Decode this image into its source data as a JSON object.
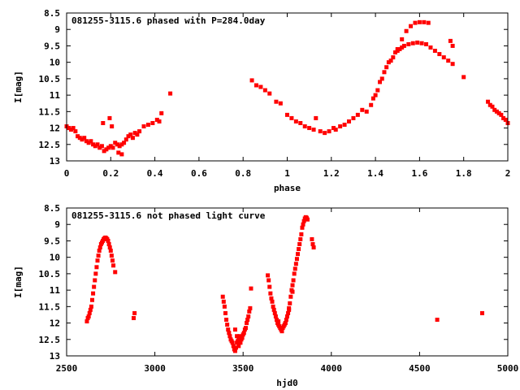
{
  "chart_data": [
    {
      "type": "scatter",
      "title": "081255-3115.6 phased with P=284.0day",
      "xlabel": "phase",
      "ylabel": "I[mag]",
      "xlim": [
        0,
        2
      ],
      "ylim": [
        13,
        8.5
      ],
      "y_inverted": true,
      "grid": false,
      "color": "#ff0000",
      "xticks": [
        "0",
        "0.2",
        "0.4",
        "0.6",
        "0.8",
        "1",
        "1.2",
        "1.4",
        "1.6",
        "1.8",
        "2"
      ],
      "yticks": [
        "8.5",
        "9",
        "9.5",
        "10",
        "10.5",
        "11",
        "11.5",
        "12",
        "12.5",
        "13"
      ],
      "series": [
        {
          "points": [
            [
              0.0,
              11.95
            ],
            [
              0.01,
              12.0
            ],
            [
              0.02,
              12.05
            ],
            [
              0.03,
              12.0
            ],
            [
              0.04,
              12.1
            ],
            [
              0.05,
              12.25
            ],
            [
              0.06,
              12.3
            ],
            [
              0.07,
              12.35
            ],
            [
              0.08,
              12.3
            ],
            [
              0.09,
              12.4
            ],
            [
              0.1,
              12.45
            ],
            [
              0.11,
              12.4
            ],
            [
              0.12,
              12.5
            ],
            [
              0.13,
              12.55
            ],
            [
              0.14,
              12.5
            ],
            [
              0.15,
              12.6
            ],
            [
              0.16,
              12.55
            ],
            [
              0.17,
              12.7
            ],
            [
              0.18,
              12.65
            ],
            [
              0.19,
              12.6
            ],
            [
              0.2,
              12.55
            ],
            [
              0.21,
              12.6
            ],
            [
              0.22,
              12.45
            ],
            [
              0.23,
              12.5
            ],
            [
              0.24,
              12.55
            ],
            [
              0.25,
              12.5
            ],
            [
              0.26,
              12.45
            ],
            [
              0.165,
              11.85
            ],
            [
              0.195,
              11.7
            ],
            [
              0.205,
              11.95
            ],
            [
              0.235,
              12.75
            ],
            [
              0.25,
              12.8
            ],
            [
              0.27,
              12.35
            ],
            [
              0.28,
              12.25
            ],
            [
              0.29,
              12.2
            ],
            [
              0.3,
              12.3
            ],
            [
              0.31,
              12.15
            ],
            [
              0.32,
              12.2
            ],
            [
              0.33,
              12.1
            ],
            [
              0.35,
              11.95
            ],
            [
              0.37,
              11.9
            ],
            [
              0.39,
              11.85
            ],
            [
              0.41,
              11.75
            ],
            [
              0.42,
              11.8
            ],
            [
              0.43,
              11.55
            ],
            [
              0.47,
              10.95
            ],
            [
              0.84,
              10.55
            ],
            [
              0.86,
              10.7
            ],
            [
              0.88,
              10.75
            ],
            [
              0.9,
              10.85
            ],
            [
              0.92,
              10.95
            ],
            [
              0.95,
              11.2
            ],
            [
              0.97,
              11.25
            ],
            [
              1.0,
              11.6
            ],
            [
              1.02,
              11.7
            ],
            [
              1.04,
              11.8
            ],
            [
              1.06,
              11.85
            ],
            [
              1.08,
              11.95
            ],
            [
              1.1,
              12.0
            ],
            [
              1.12,
              12.05
            ],
            [
              1.13,
              11.7
            ],
            [
              1.15,
              12.1
            ],
            [
              1.17,
              12.15
            ],
            [
              1.19,
              12.1
            ],
            [
              1.21,
              12.0
            ],
            [
              1.22,
              12.05
            ],
            [
              1.24,
              11.95
            ],
            [
              1.26,
              11.9
            ],
            [
              1.28,
              11.8
            ],
            [
              1.3,
              11.7
            ],
            [
              1.32,
              11.6
            ],
            [
              1.34,
              11.45
            ],
            [
              1.36,
              11.5
            ],
            [
              1.38,
              11.3
            ],
            [
              1.39,
              11.1
            ],
            [
              1.4,
              11.0
            ],
            [
              1.41,
              10.85
            ],
            [
              1.42,
              10.6
            ],
            [
              1.43,
              10.5
            ],
            [
              1.44,
              10.3
            ],
            [
              1.45,
              10.15
            ],
            [
              1.46,
              10.0
            ],
            [
              1.47,
              9.95
            ],
            [
              1.48,
              9.85
            ],
            [
              1.49,
              9.7
            ],
            [
              1.5,
              9.65
            ],
            [
              1.51,
              9.6
            ],
            [
              1.52,
              9.55
            ],
            [
              1.53,
              9.5
            ],
            [
              1.55,
              9.45
            ],
            [
              1.57,
              9.42
            ],
            [
              1.59,
              9.4
            ],
            [
              1.61,
              9.42
            ],
            [
              1.63,
              9.45
            ],
            [
              1.65,
              9.55
            ],
            [
              1.67,
              9.65
            ],
            [
              1.69,
              9.75
            ],
            [
              1.71,
              9.85
            ],
            [
              1.73,
              9.95
            ],
            [
              1.75,
              10.05
            ],
            [
              1.5,
              9.6
            ],
            [
              1.52,
              9.3
            ],
            [
              1.54,
              9.05
            ],
            [
              1.56,
              8.9
            ],
            [
              1.58,
              8.8
            ],
            [
              1.6,
              8.78
            ],
            [
              1.62,
              8.78
            ],
            [
              1.64,
              8.8
            ],
            [
              1.74,
              9.35
            ],
            [
              1.75,
              9.5
            ],
            [
              1.8,
              10.45
            ],
            [
              1.91,
              11.2
            ],
            [
              1.92,
              11.3
            ],
            [
              1.93,
              11.35
            ],
            [
              1.94,
              11.45
            ],
            [
              1.95,
              11.5
            ],
            [
              1.96,
              11.55
            ],
            [
              1.97,
              11.6
            ],
            [
              1.98,
              11.7
            ],
            [
              1.99,
              11.75
            ],
            [
              2.0,
              11.85
            ]
          ]
        }
      ]
    },
    {
      "type": "scatter",
      "title": "081255-3115.6 not phased light curve",
      "xlabel": "hjd0",
      "ylabel": "I[mag]",
      "xlim": [
        2500,
        5000
      ],
      "ylim": [
        13,
        8.5
      ],
      "y_inverted": true,
      "grid": false,
      "color": "#ff0000",
      "xticks": [
        "2500",
        "3000",
        "3500",
        "4000",
        "4500",
        "5000"
      ],
      "yticks": [
        "8.5",
        "9",
        "9.5",
        "10",
        "10.5",
        "11",
        "11.5",
        "12",
        "12.5",
        "13"
      ],
      "series": [
        {
          "points": [
            [
              2615,
              11.95
            ],
            [
              2620,
              11.85
            ],
            [
              2625,
              11.8
            ],
            [
              2630,
              11.7
            ],
            [
              2635,
              11.6
            ],
            [
              2640,
              11.5
            ],
            [
              2645,
              11.3
            ],
            [
              2650,
              11.1
            ],
            [
              2655,
              10.9
            ],
            [
              2660,
              10.7
            ],
            [
              2665,
              10.5
            ],
            [
              2670,
              10.3
            ],
            [
              2675,
              10.1
            ],
            [
              2680,
              9.95
            ],
            [
              2685,
              9.8
            ],
            [
              2690,
              9.7
            ],
            [
              2695,
              9.6
            ],
            [
              2700,
              9.55
            ],
            [
              2705,
              9.5
            ],
            [
              2710,
              9.45
            ],
            [
              2715,
              9.42
            ],
            [
              2720,
              9.4
            ],
            [
              2725,
              9.42
            ],
            [
              2730,
              9.45
            ],
            [
              2735,
              9.5
            ],
            [
              2740,
              9.6
            ],
            [
              2745,
              9.7
            ],
            [
              2750,
              9.8
            ],
            [
              2755,
              9.95
            ],
            [
              2760,
              10.1
            ],
            [
              2765,
              10.25
            ],
            [
              2775,
              10.45
            ],
            [
              2880,
              11.85
            ],
            [
              2885,
              11.7
            ],
            [
              3385,
              11.2
            ],
            [
              3390,
              11.35
            ],
            [
              3395,
              11.5
            ],
            [
              3400,
              11.7
            ],
            [
              3405,
              11.9
            ],
            [
              3410,
              12.05
            ],
            [
              3415,
              12.2
            ],
            [
              3420,
              12.3
            ],
            [
              3425,
              12.4
            ],
            [
              3430,
              12.5
            ],
            [
              3435,
              12.55
            ],
            [
              3440,
              12.6
            ],
            [
              3445,
              12.7
            ],
            [
              3450,
              12.8
            ],
            [
              3455,
              12.85
            ],
            [
              3460,
              12.75
            ],
            [
              3465,
              12.6
            ],
            [
              3470,
              12.55
            ],
            [
              3475,
              12.5
            ],
            [
              3480,
              12.4
            ],
            [
              3485,
              12.6
            ],
            [
              3490,
              12.5
            ],
            [
              3495,
              12.45
            ],
            [
              3500,
              12.35
            ],
            [
              3505,
              12.3
            ],
            [
              3510,
              12.2
            ],
            [
              3515,
              12.15
            ],
            [
              3520,
              12.0
            ],
            [
              3525,
              11.9
            ],
            [
              3530,
              11.8
            ],
            [
              3535,
              11.65
            ],
            [
              3540,
              11.55
            ],
            [
              3545,
              10.95
            ],
            [
              3455,
              12.2
            ],
            [
              3465,
              12.4
            ],
            [
              3475,
              12.7
            ],
            [
              3640,
              10.55
            ],
            [
              3645,
              10.7
            ],
            [
              3650,
              10.9
            ],
            [
              3655,
              11.1
            ],
            [
              3660,
              11.25
            ],
            [
              3665,
              11.35
            ],
            [
              3670,
              11.5
            ],
            [
              3675,
              11.6
            ],
            [
              3680,
              11.7
            ],
            [
              3685,
              11.8
            ],
            [
              3690,
              11.9
            ],
            [
              3695,
              12.0
            ],
            [
              3700,
              12.05
            ],
            [
              3705,
              12.1
            ],
            [
              3710,
              12.15
            ],
            [
              3715,
              12.2
            ],
            [
              3720,
              12.2
            ],
            [
              3725,
              12.15
            ],
            [
              3730,
              12.1
            ],
            [
              3735,
              12.05
            ],
            [
              3740,
              12.0
            ],
            [
              3745,
              11.9
            ],
            [
              3750,
              11.8
            ],
            [
              3755,
              11.7
            ],
            [
              3760,
              11.55
            ],
            [
              3765,
              11.4
            ],
            [
              3770,
              11.2
            ],
            [
              3775,
              11.0
            ],
            [
              3780,
              10.85
            ],
            [
              3785,
              10.7
            ],
            [
              3790,
              10.5
            ],
            [
              3795,
              10.35
            ],
            [
              3800,
              10.2
            ],
            [
              3805,
              10.05
            ],
            [
              3810,
              9.9
            ],
            [
              3815,
              9.75
            ],
            [
              3820,
              9.6
            ],
            [
              3825,
              9.45
            ],
            [
              3830,
              9.3
            ],
            [
              3835,
              9.1
            ],
            [
              3840,
              9.0
            ],
            [
              3845,
              8.9
            ],
            [
              3850,
              8.82
            ],
            [
              3855,
              8.78
            ],
            [
              3860,
              8.8
            ],
            [
              3865,
              8.85
            ],
            [
              3700,
              11.95
            ],
            [
              3720,
              12.25
            ],
            [
              3740,
              12.0
            ],
            [
              3760,
              11.6
            ],
            [
              3780,
              11.05
            ],
            [
              3890,
              9.45
            ],
            [
              3895,
              9.6
            ],
            [
              3900,
              9.7
            ],
            [
              4600,
              11.9
            ],
            [
              4855,
              11.7
            ]
          ]
        }
      ]
    }
  ]
}
